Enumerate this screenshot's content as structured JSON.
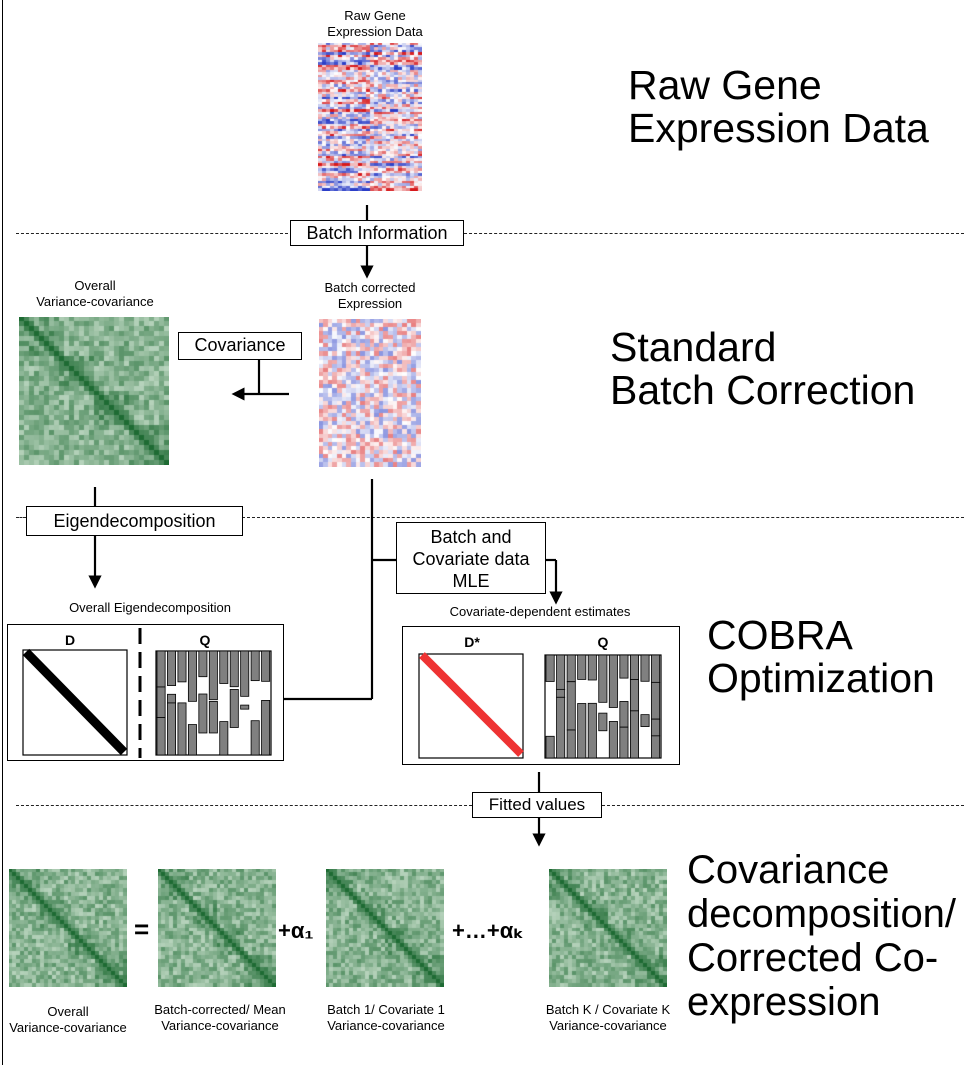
{
  "stages": {
    "raw": "Raw Gene\nExpression Data",
    "standard": "Standard\nBatch Correction",
    "cobra": "COBRA\nOptimization",
    "decomp": "Covariance\ndecomposition/\nCorrected Co-\nexpression"
  },
  "labels": {
    "raw_heatmap": "Raw Gene\nExpression Data",
    "batch_info": "Batch Information",
    "batch_corrected": "Batch corrected\nExpression",
    "overall_varcov": "Overall\nVariance-covariance",
    "covariance": "Covariance",
    "eigendecomposition": "Eigendecomposition",
    "batch_cov_mle": "Batch and\nCovariate data\nMLE",
    "overall_eigen": "Overall Eigendecomposition",
    "cov_dep_estimates": "Covariate-dependent estimates",
    "D": "D",
    "Q": "Q",
    "Dstar": "D*",
    "Q2": "Q",
    "fitted_values": "Fitted values",
    "bottom_overall": "Overall\nVariance-covariance",
    "bottom_batchcorrected": "Batch-corrected/ Mean\nVariance-covariance",
    "bottom_batch1": "Batch 1/ Covariate 1\nVariance-covariance",
    "bottom_batchK": "Batch K / Covariate K\nVariance-covariance",
    "equals": "=",
    "plus_alpha1": "+α₁",
    "plus_dots_alphaK": "+…+αₖ"
  },
  "colors": {
    "heat_green_dark": "#1e6b33",
    "heat_green_light": "#eaf6ea",
    "heat_red": "#d7191c",
    "heat_blue": "#2c3fc8",
    "bar_gray": "#808080",
    "dstar_red": "#ee3333"
  }
}
